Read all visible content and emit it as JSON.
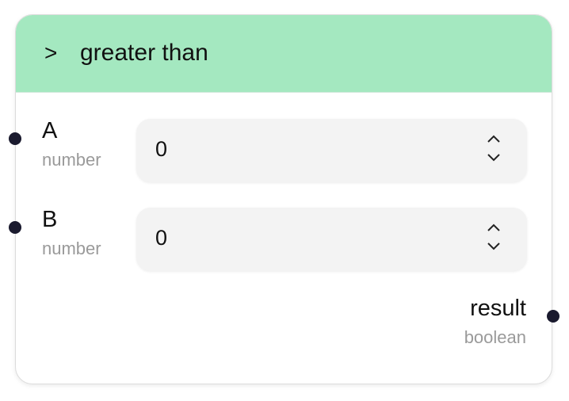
{
  "node": {
    "icon": "greater-than-icon",
    "icon_glyph": ">",
    "title": "greater than"
  },
  "inputs": [
    {
      "label": "A",
      "type": "number",
      "value": "0"
    },
    {
      "label": "B",
      "type": "number",
      "value": "0"
    }
  ],
  "output": {
    "label": "result",
    "type": "boolean"
  },
  "colors": {
    "header_bg": "#a4e8c0",
    "handle": "#1a1a2e",
    "field_bg": "#f3f3f3",
    "type_text": "#9a9a9a"
  }
}
